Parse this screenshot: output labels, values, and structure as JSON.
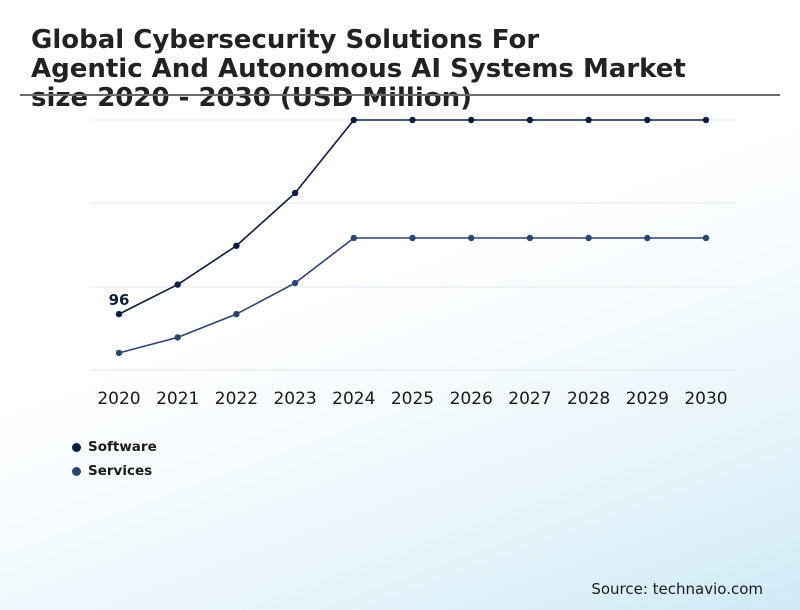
{
  "chart_data": {
    "type": "line",
    "title_lines": [
      "Global Cybersecurity Solutions For",
      "Agentic And Autonomous AI Systems Market",
      "size 2020 - 2030 (USD Million)"
    ],
    "categories": [
      "2020",
      "2021",
      "2022",
      "2023",
      "2024",
      "2025",
      "2026",
      "2027",
      "2028",
      "2029",
      "2030"
    ],
    "series": [
      {
        "name": "Software",
        "color": "#0b1e3f",
        "values": [
          96,
          115,
          140,
          174,
          221,
          221,
          221,
          221,
          221,
          221,
          221
        ]
      },
      {
        "name": "Services",
        "color": "#2c4470",
        "values": [
          71,
          81,
          96,
          116,
          145,
          145,
          145,
          145,
          145,
          145,
          145
        ]
      }
    ],
    "annotations": [
      {
        "series": "Software",
        "category": "2020",
        "text": "96"
      }
    ],
    "ylim": [
      60,
      221
    ],
    "grid": true,
    "legend": "bottom-left",
    "xlabel": "",
    "ylabel": ""
  },
  "source": "Source: technavio.com"
}
